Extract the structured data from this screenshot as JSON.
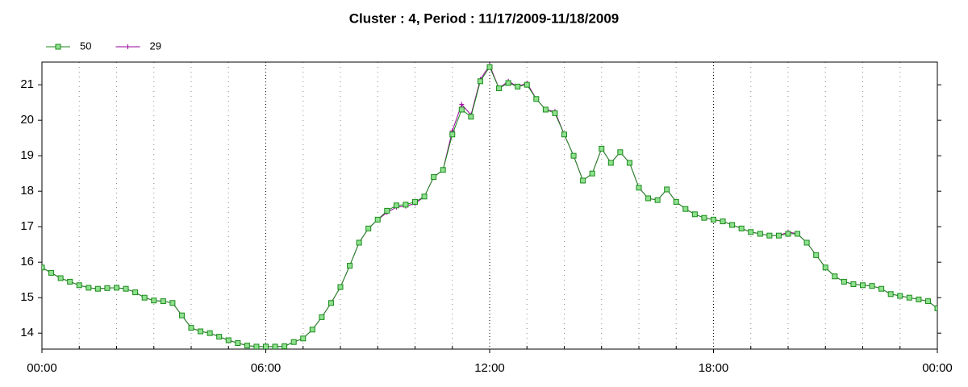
{
  "chart_data": {
    "type": "line",
    "title": "Cluster : 4, Period : 11/17/2009-11/18/2009",
    "x": [
      0,
      0.25,
      0.5,
      0.75,
      1,
      1.25,
      1.5,
      1.75,
      2,
      2.25,
      2.5,
      2.75,
      3,
      3.25,
      3.5,
      3.75,
      4,
      4.25,
      4.5,
      4.75,
      5,
      5.25,
      5.5,
      5.75,
      6,
      6.25,
      6.5,
      6.75,
      7,
      7.25,
      7.5,
      7.75,
      8,
      8.25,
      8.5,
      8.75,
      9,
      9.25,
      9.5,
      9.75,
      10,
      10.25,
      10.5,
      10.75,
      11,
      11.25,
      11.5,
      11.75,
      12,
      12.25,
      12.5,
      12.75,
      13,
      13.25,
      13.5,
      13.75,
      14,
      14.25,
      14.5,
      14.75,
      15,
      15.25,
      15.5,
      15.75,
      16,
      16.25,
      16.5,
      16.75,
      17,
      17.25,
      17.5,
      17.75,
      18,
      18.25,
      18.5,
      18.75,
      19,
      19.25,
      19.5,
      19.75,
      20,
      20.25,
      20.5,
      20.75,
      21,
      21.25,
      21.5,
      21.75,
      22,
      22.25,
      22.5,
      22.75,
      23,
      23.25,
      23.5,
      23.75,
      24
    ],
    "series": [
      {
        "name": "29",
        "color": "#990099",
        "marker": "plus",
        "values": [
          15.85,
          15.7,
          15.55,
          15.45,
          15.35,
          15.28,
          15.25,
          15.27,
          15.28,
          15.25,
          15.15,
          15.0,
          14.92,
          14.9,
          14.85,
          14.5,
          14.15,
          14.05,
          14.0,
          13.9,
          13.8,
          13.72,
          13.65,
          13.62,
          13.62,
          13.62,
          13.63,
          13.75,
          13.85,
          14.1,
          14.45,
          14.85,
          15.3,
          15.9,
          16.55,
          16.95,
          17.2,
          17.4,
          17.55,
          17.58,
          17.65,
          17.85,
          18.4,
          18.6,
          19.7,
          20.45,
          20.15,
          21.15,
          21.55,
          20.9,
          21.1,
          20.95,
          21.05,
          20.6,
          20.3,
          20.25,
          19.6,
          19.0,
          18.3,
          18.5,
          19.2,
          18.8,
          19.1,
          18.8,
          18.1,
          17.8,
          17.75,
          18.05,
          17.7,
          17.5,
          17.35,
          17.25,
          17.2,
          17.15,
          17.05,
          16.95,
          16.85,
          16.8,
          16.75,
          16.75,
          16.85,
          16.8,
          16.55,
          16.2,
          15.85,
          15.6,
          15.45,
          15.38,
          15.35,
          15.33,
          15.25,
          15.1,
          15.05,
          15.0,
          14.95,
          14.9,
          14.7
        ]
      },
      {
        "name": "50",
        "color": "#1a8a1a",
        "marker": "square",
        "fill": "#8fe08f",
        "values": [
          15.85,
          15.7,
          15.55,
          15.45,
          15.35,
          15.28,
          15.25,
          15.27,
          15.28,
          15.25,
          15.15,
          15.0,
          14.92,
          14.9,
          14.85,
          14.5,
          14.15,
          14.05,
          14.0,
          13.9,
          13.8,
          13.72,
          13.65,
          13.62,
          13.62,
          13.62,
          13.63,
          13.75,
          13.85,
          14.1,
          14.45,
          14.85,
          15.3,
          15.9,
          16.55,
          16.95,
          17.2,
          17.45,
          17.6,
          17.62,
          17.7,
          17.85,
          18.4,
          18.6,
          19.6,
          20.3,
          20.1,
          21.1,
          21.5,
          20.9,
          21.05,
          20.95,
          21.0,
          20.6,
          20.3,
          20.2,
          19.6,
          19.0,
          18.3,
          18.5,
          19.2,
          18.8,
          19.1,
          18.8,
          18.1,
          17.8,
          17.75,
          18.05,
          17.7,
          17.5,
          17.35,
          17.25,
          17.2,
          17.15,
          17.05,
          16.95,
          16.85,
          16.8,
          16.75,
          16.75,
          16.8,
          16.8,
          16.55,
          16.2,
          15.85,
          15.6,
          15.45,
          15.38,
          15.35,
          15.33,
          15.25,
          15.1,
          15.05,
          15.0,
          14.95,
          14.9,
          14.7
        ]
      }
    ],
    "xlim": [
      0,
      24
    ],
    "xticks": [
      {
        "value": 0,
        "label": "00:00"
      },
      {
        "value": 6,
        "label": "06:00"
      },
      {
        "value": 12,
        "label": "12:00"
      },
      {
        "value": 18,
        "label": "18:00"
      },
      {
        "value": 24,
        "label": "00:00"
      }
    ],
    "xminorticks": [
      1,
      2,
      3,
      4,
      5,
      7,
      8,
      9,
      10,
      11,
      13,
      14,
      15,
      16,
      17,
      19,
      20,
      21,
      22,
      23
    ],
    "ylim": [
      13.55,
      21.64
    ],
    "yticks": [
      14,
      15,
      16,
      17,
      18,
      19,
      20,
      21
    ],
    "grid": true,
    "legend": "top-left"
  }
}
